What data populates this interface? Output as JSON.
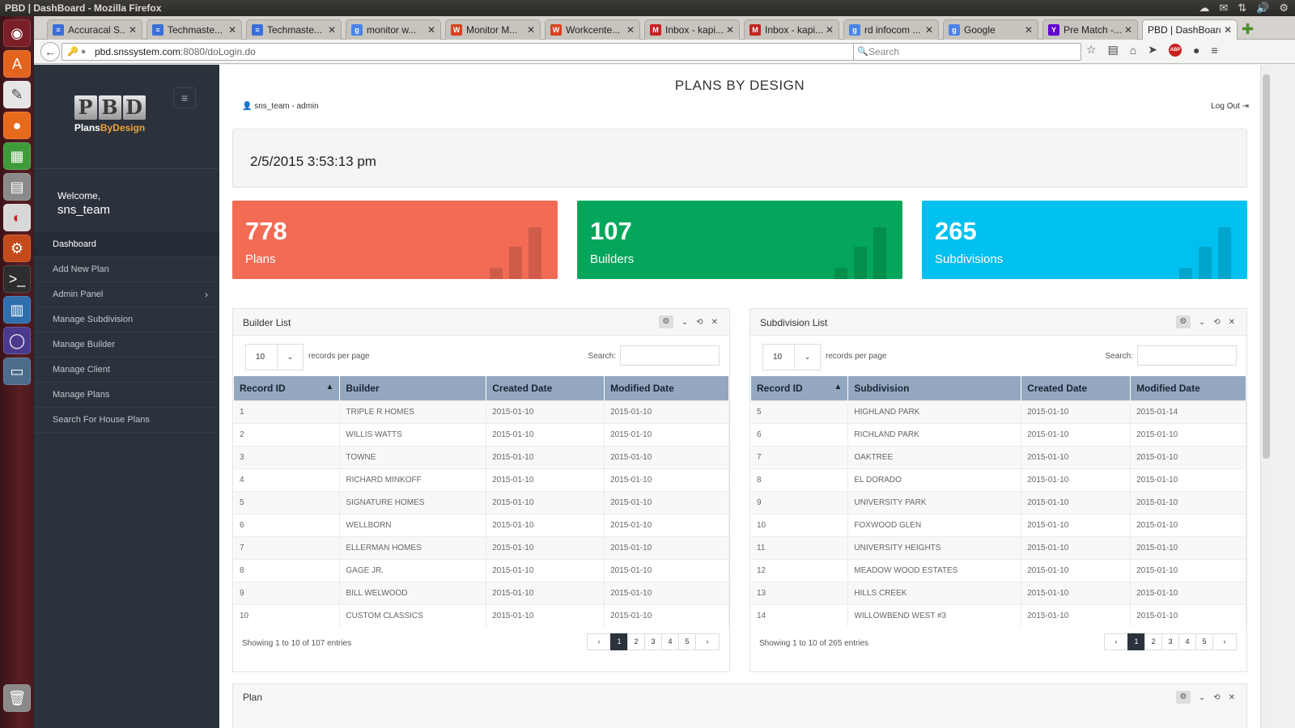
{
  "window_title": "PBD | DashBoard - Mozilla Firefox",
  "tabs": [
    {
      "label": "Accuracal S...",
      "icon": "doc-icon",
      "color": "#3b6fd8"
    },
    {
      "label": "Techmaste...",
      "icon": "doc-icon",
      "color": "#3b6fd8"
    },
    {
      "label": "Techmaste...",
      "icon": "doc-icon",
      "color": "#3b6fd8"
    },
    {
      "label": "monitor w...",
      "icon": "google-icon",
      "color": "#4a84e8"
    },
    {
      "label": "Monitor M...",
      "icon": "w-icon",
      "color": "#d9411e"
    },
    {
      "label": "Workcente...",
      "icon": "w-icon",
      "color": "#d9411e"
    },
    {
      "label": "Inbox - kapi...",
      "icon": "gmail-icon",
      "color": "#c5221f"
    },
    {
      "label": "Inbox - kapi...",
      "icon": "gmail-icon",
      "color": "#c5221f"
    },
    {
      "label": "rd infocom ...",
      "icon": "google-icon",
      "color": "#4a84e8"
    },
    {
      "label": "Google",
      "icon": "google-icon",
      "color": "#4a84e8"
    },
    {
      "label": "Pre Match -...",
      "icon": "yahoo-icon",
      "color": "#5f01d1"
    },
    {
      "label": "PBD | DashBoard",
      "icon": "none",
      "color": "#f4f4f3"
    }
  ],
  "url": {
    "host": "pbd.snssystem.com",
    "path": ":8080/doLogin.do"
  },
  "search_placeholder": "Search",
  "sidebar": {
    "logo_letters": [
      "P",
      "B",
      "D"
    ],
    "logo_text_a": "Plans",
    "logo_text_b": "By",
    "logo_text_c": "Design",
    "welcome": "Welcome,",
    "username": "sns_team",
    "items": [
      {
        "label": "Dashboard"
      },
      {
        "label": "Add New Plan"
      },
      {
        "label": "Admin Panel"
      },
      {
        "label": "Manage Subdivision"
      },
      {
        "label": "Manage Builder"
      },
      {
        "label": "Manage Client"
      },
      {
        "label": "Manage Plans"
      },
      {
        "label": "Search For House Plans"
      }
    ]
  },
  "header": {
    "title": "PLANS BY DESIGN",
    "user": "sns_team - admin",
    "logout": "Log Out"
  },
  "datetime": "2/5/2015 3:53:13 pm",
  "stats": [
    {
      "value": "778",
      "label": "Plans",
      "color": "#f26b55"
    },
    {
      "value": "107",
      "label": "Builders",
      "color": "#03a65a"
    },
    {
      "value": "265",
      "label": "Subdivisions",
      "color": "#00c0ef"
    }
  ],
  "builder_list": {
    "title": "Builder List",
    "page_length": "10",
    "length_label": "records per page",
    "search_label": "Search:",
    "columns": [
      "Record ID",
      "Builder",
      "Created Date",
      "Modified Date"
    ],
    "rows": [
      [
        "1",
        "TRIPLE R HOMES",
        "2015-01-10",
        "2015-01-10"
      ],
      [
        "2",
        "WILLIS WATTS",
        "2015-01-10",
        "2015-01-10"
      ],
      [
        "3",
        "TOWNE",
        "2015-01-10",
        "2015-01-10"
      ],
      [
        "4",
        "RICHARD MINKOFF",
        "2015-01-10",
        "2015-01-10"
      ],
      [
        "5",
        "SIGNATURE HOMES",
        "2015-01-10",
        "2015-01-10"
      ],
      [
        "6",
        "WELLBORN",
        "2015-01-10",
        "2015-01-10"
      ],
      [
        "7",
        "ELLERMAN HOMES",
        "2015-01-10",
        "2015-01-10"
      ],
      [
        "8",
        "GAGE JR.",
        "2015-01-10",
        "2015-01-10"
      ],
      [
        "9",
        "BILL WELWOOD",
        "2015-01-10",
        "2015-01-10"
      ],
      [
        "10",
        "CUSTOM CLASSICS",
        "2015-01-10",
        "2015-01-10"
      ]
    ],
    "info": "Showing 1 to 10 of 107 entries",
    "pages": [
      "1",
      "2",
      "3",
      "4",
      "5"
    ]
  },
  "subdivision_list": {
    "title": "Subdivision List",
    "page_length": "10",
    "length_label": "records per page",
    "search_label": "Search:",
    "columns": [
      "Record ID",
      "Subdivision",
      "Created Date",
      "Modified Date"
    ],
    "rows": [
      [
        "5",
        "HIGHLAND PARK",
        "2015-01-10",
        "2015-01-14"
      ],
      [
        "6",
        "RICHLAND PARK",
        "2015-01-10",
        "2015-01-10"
      ],
      [
        "7",
        "OAKTREE",
        "2015-01-10",
        "2015-01-10"
      ],
      [
        "8",
        "EL DORADO",
        "2015-01-10",
        "2015-01-10"
      ],
      [
        "9",
        "UNIVERSITY PARK",
        "2015-01-10",
        "2015-01-10"
      ],
      [
        "10",
        "FOXWOOD GLEN",
        "2015-01-10",
        "2015-01-10"
      ],
      [
        "11",
        "UNIVERSITY HEIGHTS",
        "2015-01-10",
        "2015-01-10"
      ],
      [
        "12",
        "MEADOW WOOD ESTATES",
        "2015-01-10",
        "2015-01-10"
      ],
      [
        "13",
        "HILLS CREEK",
        "2015-01-10",
        "2015-01-10"
      ],
      [
        "14",
        "WILLOWBEND WEST #3",
        "2015-01-10",
        "2015-01-10"
      ]
    ],
    "info": "Showing 1 to 10 of 265 entries",
    "pages": [
      "1",
      "2",
      "3",
      "4",
      "5"
    ]
  },
  "plan_panel": {
    "title": "Plan"
  }
}
